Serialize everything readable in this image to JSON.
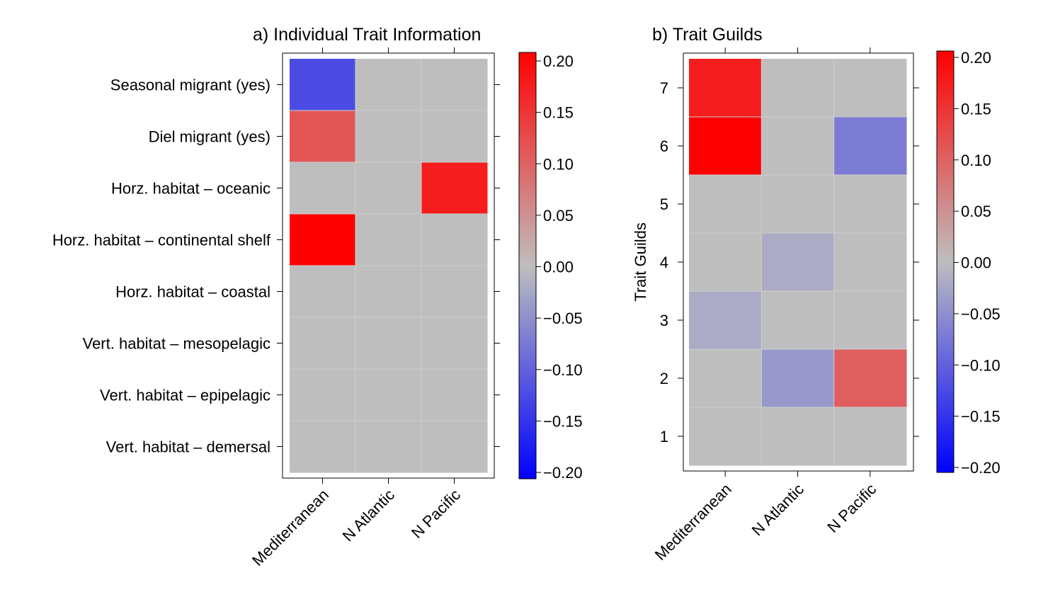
{
  "chart_data": [
    {
      "type": "heatmap",
      "title": "a) Individual Trait Information",
      "xlabel": "",
      "ylabel": "",
      "x_categories": [
        "Mediterranean",
        "N Atlantic",
        "N Pacific"
      ],
      "y_categories": [
        "Seasonal migrant (yes)",
        "Diel migrant (yes)",
        "Horz. habitat – oceanic",
        "Horz. habitat – continental shelf",
        "Horz. habitat – coastal",
        "Vert. habitat – mesopelagic",
        "Vert. habitat – epipelagic",
        "Vert. habitat – demersal"
      ],
      "values": [
        [
          -0.12,
          0.0,
          0.0
        ],
        [
          0.11,
          0.0,
          0.0
        ],
        [
          0.0,
          0.0,
          0.17
        ],
        [
          0.2,
          0.0,
          0.0
        ],
        [
          0.0,
          0.0,
          0.0
        ],
        [
          0.0,
          0.0,
          0.0
        ],
        [
          0.0,
          0.0,
          0.0
        ],
        [
          0.0,
          0.0,
          0.0
        ]
      ],
      "colorbar": {
        "range": [
          -0.2,
          0.2
        ],
        "ticks": [
          0.2,
          0.15,
          0.1,
          0.05,
          0.0,
          -0.05,
          -0.1,
          -0.15,
          -0.2
        ],
        "tick_labels": [
          "0.20",
          "0.15",
          "0.10",
          "0.05",
          "0.00",
          "−0.05",
          "−0.10",
          "−0.15",
          "−0.20"
        ],
        "colors": {
          "low": "#0000ff",
          "mid": "#bebebe",
          "high": "#ff0000"
        }
      }
    },
    {
      "type": "heatmap",
      "title": "b) Trait Guilds",
      "xlabel": "",
      "ylabel": "Trait Guilds",
      "x_categories": [
        "Mediterranean",
        "N Atlantic",
        "N Pacific"
      ],
      "y_categories": [
        "7",
        "6",
        "5",
        "4",
        "3",
        "2",
        "1"
      ],
      "values": [
        [
          0.17,
          0.0,
          0.0
        ],
        [
          0.2,
          0.0,
          -0.07
        ],
        [
          0.0,
          0.0,
          0.0
        ],
        [
          0.0,
          -0.02,
          0.0
        ],
        [
          -0.02,
          0.0,
          0.0
        ],
        [
          0.0,
          -0.04,
          0.1
        ],
        [
          0.0,
          0.0,
          0.0
        ]
      ],
      "colorbar": {
        "range": [
          -0.2,
          0.2
        ],
        "ticks": [
          0.2,
          0.15,
          0.1,
          0.05,
          0.0,
          -0.05,
          -0.1,
          -0.15,
          -0.2
        ],
        "tick_labels": [
          "0.20",
          "0.15",
          "0.10",
          "0.05",
          "0.00",
          "−0.05",
          "−0.10",
          "−0.15",
          "−0.20"
        ],
        "colors": {
          "low": "#0000ff",
          "mid": "#bebebe",
          "high": "#ff0000"
        }
      }
    }
  ]
}
